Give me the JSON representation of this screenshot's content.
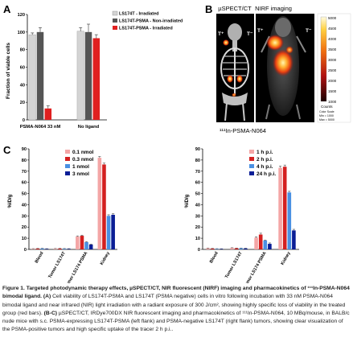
{
  "panelA": {
    "letter": "A",
    "ylabel": "Fraction of viable cells",
    "yticks": [
      "0",
      "20",
      "40",
      "60",
      "80",
      "100",
      "120"
    ],
    "ymax": 120,
    "groups": [
      "PSMA-N064 33 nM",
      "No ligand"
    ],
    "legend": [
      "LS174T - Irradiated",
      "LS174T-PSMA - Non-irradiated",
      "LS174T-PSMA - Irradiated"
    ],
    "colors": [
      "#d4d4d4",
      "#555555",
      "#e02020"
    ],
    "values": [
      [
        97,
        100,
        13
      ],
      [
        101,
        100,
        93
      ]
    ],
    "errors": [
      [
        2,
        5,
        3
      ],
      [
        4,
        9,
        4
      ]
    ]
  },
  "panelB": {
    "letter": "B",
    "label_spect": "µSPECT/CT",
    "label_nirf": "NIRF imaging",
    "tracer": "¹¹¹In-PSMA-N064",
    "tplus": "T⁺",
    "tminus": "T⁻",
    "colorbar_ticks": [
      "5000",
      "4500",
      "4000",
      "3500",
      "3000",
      "2500",
      "2000",
      "1500",
      "1000"
    ],
    "colorbar_unit": "Counts",
    "colorbar_scale": "Color Scale",
    "colorbar_min": "Min = 1000",
    "colorbar_max": "Max = 5000"
  },
  "panelC": {
    "letter": "C",
    "categories": [
      "Blood",
      "Tumor LS174T",
      "Tumor LS174 PSMA",
      "Kidney"
    ],
    "left": {
      "ylabel": "%ID/g",
      "yticks": [
        "0",
        "10",
        "20",
        "30",
        "40",
        "50",
        "60",
        "70",
        "80",
        "90"
      ],
      "ymax": 90,
      "legend": [
        "0.1 nmol",
        "0.3 nmol",
        "1 nmol",
        "3 nmol"
      ],
      "colors": [
        "#f4a6a6",
        "#d42020",
        "#4a90e2",
        "#0a1e96"
      ],
      "values": [
        [
          0.5,
          0.7,
          0.8,
          0.5
        ],
        [
          0.6,
          0.7,
          0.6,
          0.5
        ],
        [
          11.5,
          12.2,
          6.5,
          4.4
        ],
        [
          82,
          76,
          30,
          31
        ]
      ],
      "errors": [
        [
          0.2,
          0.2,
          0.2,
          0.2
        ],
        [
          0.2,
          0.2,
          0.2,
          0.2
        ],
        [
          0.6,
          0.6,
          0.4,
          0.3
        ],
        [
          1.2,
          1.2,
          1.0,
          1.0
        ]
      ]
    },
    "right": {
      "ylabel": "%ID/g",
      "yticks": [
        "0",
        "10",
        "20",
        "30",
        "40",
        "50",
        "60",
        "70",
        "80",
        "90"
      ],
      "ymax": 90,
      "legend": [
        "1 h p.i.",
        "2 h p.i.",
        "4 h p.i.",
        "24 h p.i."
      ],
      "colors": [
        "#f4a6a6",
        "#d42020",
        "#4a90e2",
        "#0a1e96"
      ],
      "values": [
        [
          1.0,
          0.7,
          0.5,
          0.4
        ],
        [
          1.3,
          1.0,
          1.0,
          0.9
        ],
        [
          10.5,
          13.3,
          8.0,
          5.0
        ],
        [
          73,
          74,
          51,
          17
        ]
      ],
      "errors": [
        [
          0.2,
          0.2,
          0.2,
          0.2
        ],
        [
          0.2,
          0.2,
          0.2,
          0.2
        ],
        [
          0.8,
          1.2,
          0.4,
          0.8
        ],
        [
          1.5,
          1.5,
          1.0,
          1.0
        ]
      ]
    }
  },
  "chart_data": [
    {
      "type": "bar",
      "categories": [
        "PSMA-N064 33 nM",
        "No ligand"
      ],
      "ylabel": "Fraction of viable cells",
      "ylim": [
        0,
        120
      ],
      "series": [
        {
          "name": "LS174T - Irradiated",
          "values": [
            97,
            101
          ]
        },
        {
          "name": "LS174T-PSMA - Non-irradiated",
          "values": [
            100,
            100
          ]
        },
        {
          "name": "LS174T-PSMA - Irradiated",
          "values": [
            13,
            93
          ]
        }
      ]
    },
    {
      "type": "bar",
      "categories": [
        "Blood",
        "Tumor LS174T",
        "Tumor LS174 PSMA",
        "Kidney"
      ],
      "ylabel": "%ID/g",
      "ylim": [
        0,
        90
      ],
      "series": [
        {
          "name": "0.1 nmol",
          "values": [
            0.5,
            0.6,
            11.5,
            82
          ]
        },
        {
          "name": "0.3 nmol",
          "values": [
            0.7,
            0.7,
            12.2,
            76
          ]
        },
        {
          "name": "1 nmol",
          "values": [
            0.8,
            0.6,
            6.5,
            30
          ]
        },
        {
          "name": "3 nmol",
          "values": [
            0.5,
            0.5,
            4.4,
            31
          ]
        }
      ]
    },
    {
      "type": "bar",
      "categories": [
        "Blood",
        "Tumor LS174T",
        "Tumor LS174 PSMA",
        "Kidney"
      ],
      "ylabel": "%ID/g",
      "ylim": [
        0,
        90
      ],
      "series": [
        {
          "name": "1 h p.i.",
          "values": [
            1.0,
            1.3,
            10.5,
            73
          ]
        },
        {
          "name": "2 h p.i.",
          "values": [
            0.7,
            1.0,
            13.3,
            74
          ]
        },
        {
          "name": "4 h p.i.",
          "values": [
            0.5,
            1.0,
            8.0,
            51
          ]
        },
        {
          "name": "24 h p.i.",
          "values": [
            0.4,
            0.9,
            5.0,
            17
          ]
        }
      ]
    }
  ],
  "caption": {
    "title": "Figure 1. Targeted photodynamic therapy effects, µSPECT/CT, NIR fluorescent (NIRF) imaging and pharmacokinetics of ¹¹¹In-PSMA-N064 bimodal ligand.",
    "a_label": "(A)",
    "a_text": "Cell viability of LS174T-PSMA and LS174T (PSMA negative) cells in vitro following incubation with 33 nM PSMA-N064 bimodal ligand and near infrared (NIR) light irradiation with a radiant exposure of 300 J/cm², showing highly specific loss of viability in the treated group (red bars).",
    "bc_label": "(B-C)",
    "bc_text": "µSPECT/CT, IRDye700DX NIR fluorescent imaging and pharmacokinetics of ¹¹¹In-PSMA-N064, 10 MBq/mouse, in BALB/c nude mice with s.c. PSMA-expressing LS174T-PSMA (left flank) and PSMA-negative LS174T (right flank) tumors, showing clear visualization of the PSMA-positive tumors and high specific uptake of the tracer 2 h p.i.."
  }
}
